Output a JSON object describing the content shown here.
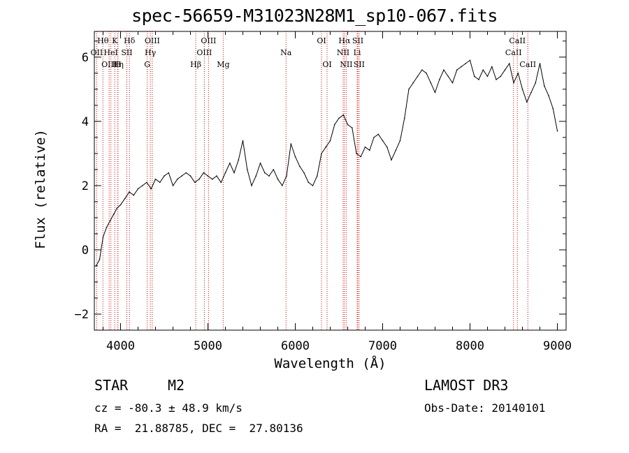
{
  "chart_data": {
    "type": "line",
    "title": "spec-56659-M31023N28M1_sp10-067.fits",
    "xlabel": "Wavelength (Å)",
    "ylabel": "Flux (relative)",
    "xlim": [
      3700,
      9100
    ],
    "ylim": [
      -2.5,
      6.8
    ],
    "xticks": [
      4000,
      5000,
      6000,
      7000,
      8000,
      9000
    ],
    "yticks": [
      -2,
      0,
      2,
      4,
      6
    ],
    "xtick_labels": [
      "4000",
      "5000",
      "6000",
      "7000",
      "8000",
      "9000"
    ],
    "ytick_labels": [
      "−2",
      "0",
      "2",
      "4",
      "6"
    ],
    "grid": false,
    "series": [
      {
        "name": "flux",
        "x": [
          3720,
          3760,
          3800,
          3840,
          3880,
          3920,
          3960,
          4000,
          4050,
          4100,
          4150,
          4200,
          4250,
          4300,
          4350,
          4400,
          4450,
          4500,
          4550,
          4600,
          4650,
          4700,
          4750,
          4800,
          4850,
          4900,
          4950,
          5000,
          5050,
          5100,
          5150,
          5200,
          5250,
          5300,
          5350,
          5400,
          5450,
          5500,
          5550,
          5600,
          5650,
          5700,
          5750,
          5800,
          5850,
          5900,
          5950,
          6000,
          6050,
          6100,
          6150,
          6200,
          6250,
          6300,
          6350,
          6400,
          6450,
          6500,
          6550,
          6600,
          6650,
          6700,
          6750,
          6800,
          6850,
          6900,
          6950,
          7000,
          7050,
          7100,
          7150,
          7200,
          7250,
          7300,
          7350,
          7400,
          7450,
          7500,
          7550,
          7600,
          7650,
          7700,
          7750,
          7800,
          7850,
          7900,
          7950,
          8000,
          8050,
          8100,
          8150,
          8200,
          8250,
          8300,
          8350,
          8400,
          8450,
          8500,
          8550,
          8600,
          8650,
          8700,
          8750,
          8800,
          8850,
          8900,
          8950,
          9000
        ],
        "y": [
          -0.5,
          -0.3,
          0.4,
          0.7,
          0.9,
          1.1,
          1.3,
          1.4,
          1.6,
          1.8,
          1.7,
          1.9,
          2.0,
          2.1,
          1.9,
          2.2,
          2.1,
          2.3,
          2.4,
          2.0,
          2.2,
          2.3,
          2.4,
          2.3,
          2.1,
          2.2,
          2.4,
          2.3,
          2.2,
          2.3,
          2.1,
          2.4,
          2.7,
          2.4,
          2.8,
          3.4,
          2.5,
          2.0,
          2.3,
          2.7,
          2.4,
          2.3,
          2.5,
          2.2,
          2.0,
          2.3,
          3.3,
          2.9,
          2.6,
          2.4,
          2.1,
          2.0,
          2.3,
          3.0,
          3.2,
          3.4,
          3.9,
          4.1,
          4.2,
          3.9,
          3.8,
          3.0,
          2.9,
          3.2,
          3.1,
          3.5,
          3.6,
          3.4,
          3.2,
          2.8,
          3.1,
          3.4,
          4.1,
          5.0,
          5.2,
          5.4,
          5.6,
          5.5,
          5.2,
          4.9,
          5.3,
          5.6,
          5.4,
          5.2,
          5.6,
          5.7,
          5.8,
          5.9,
          5.4,
          5.3,
          5.6,
          5.4,
          5.7,
          5.3,
          5.4,
          5.6,
          5.8,
          5.2,
          5.5,
          5.0,
          4.6,
          4.9,
          5.2,
          5.8,
          5.1,
          4.8,
          4.4,
          3.7
        ]
      }
    ],
    "line_markers": [
      {
        "name": "OII",
        "wl": 3727,
        "row": 1
      },
      {
        "name": "Hθ",
        "wl": 3798,
        "row": 0
      },
      {
        "name": "OIII",
        "wl": 3869,
        "row": 2
      },
      {
        "name": "HeI",
        "wl": 3889,
        "row": 1
      },
      {
        "name": "K",
        "wl": 3934,
        "row": 0
      },
      {
        "name": "Hη",
        "wl": 3970,
        "row": 2
      },
      {
        "name": "SII",
        "wl": 4072,
        "row": 1
      },
      {
        "name": "Hδ",
        "wl": 4102,
        "row": 0
      },
      {
        "name": "H",
        "wl": 3968,
        "row": 2
      },
      {
        "name": "G",
        "wl": 4305,
        "row": 2
      },
      {
        "name": "Hγ",
        "wl": 4341,
        "row": 1
      },
      {
        "name": "OIII",
        "wl": 4363,
        "row": 0
      },
      {
        "name": "Hβ",
        "wl": 4861,
        "row": 2
      },
      {
        "name": "OIII",
        "wl": 4959,
        "row": 1
      },
      {
        "name": "OIII",
        "wl": 5007,
        "row": 0
      },
      {
        "name": "Mg",
        "wl": 5175,
        "row": 2
      },
      {
        "name": "Na",
        "wl": 5894,
        "row": 1
      },
      {
        "name": "OI",
        "wl": 6300,
        "row": 0
      },
      {
        "name": "OI",
        "wl": 6364,
        "row": 2
      },
      {
        "name": "NII",
        "wl": 6548,
        "row": 1
      },
      {
        "name": "Hα",
        "wl": 6563,
        "row": 0
      },
      {
        "name": "NII",
        "wl": 6583,
        "row": 2
      },
      {
        "name": "Li",
        "wl": 6708,
        "row": 1
      },
      {
        "name": "SII",
        "wl": 6716,
        "row": 0
      },
      {
        "name": "SII",
        "wl": 6731,
        "row": 2
      },
      {
        "name": "CaII",
        "wl": 8498,
        "row": 1
      },
      {
        "name": "CaII",
        "wl": 8542,
        "row": 0
      },
      {
        "name": "CaII",
        "wl": 8662,
        "row": 2
      }
    ]
  },
  "info": {
    "object_type": "STAR",
    "subclass": "M2",
    "survey": "LAMOST DR3",
    "cz": "cz = -80.3 ± 48.9 km/s",
    "obs_date": "Obs-Date: 20140101",
    "coords": "RA =  21.88785, DEC =  27.80136"
  },
  "colors": {
    "line": "#000000",
    "marker": "#cc0000",
    "background": "#ffffff"
  }
}
